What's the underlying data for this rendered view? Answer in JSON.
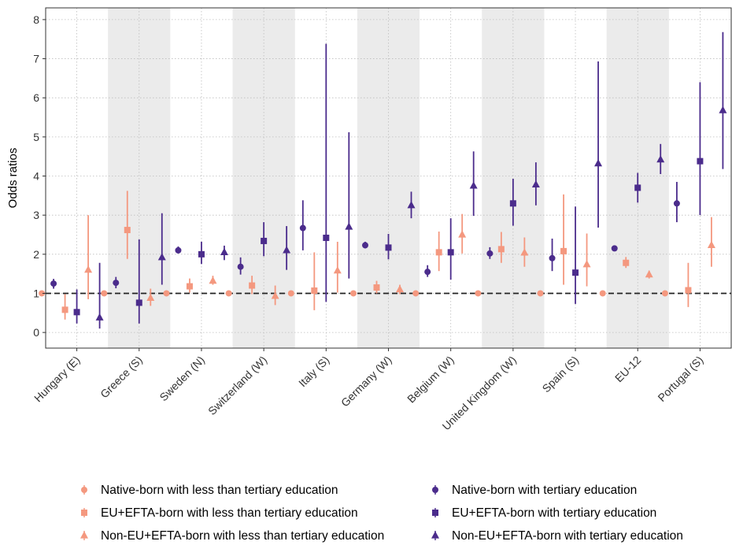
{
  "chart_data": {
    "type": "dot-errorbar",
    "title": "",
    "xlabel": "",
    "ylabel": "Odds ratios",
    "ylim": [
      -0.4,
      8.3
    ],
    "yticks": [
      0,
      1,
      2,
      3,
      4,
      5,
      6,
      7,
      8
    ],
    "reference_line": 1,
    "grid": "dotted",
    "legend_position": "bottom",
    "categories": [
      "Hungary (E)",
      "Greece (S)",
      "Sweden (N)",
      "Switzerland (W)",
      "Italy (S)",
      "Germany (W)",
      "Belgium (W)",
      "United Kingdom (W)",
      "Spain (S)",
      "EU-12",
      "Portugal (S)"
    ],
    "shaded_categories": [
      1,
      3,
      5,
      7,
      9
    ],
    "series": [
      {
        "name": "Native-born with less than tertiary education",
        "color": "#F4987F",
        "shape": "circle",
        "values": [
          1,
          1,
          1,
          1,
          1,
          1,
          1,
          1,
          1,
          1,
          1
        ],
        "lower": [
          1,
          1,
          1,
          1,
          1,
          1,
          1,
          1,
          1,
          1,
          1
        ],
        "upper": [
          1,
          1,
          1,
          1,
          1,
          1,
          1,
          1,
          1,
          1,
          1
        ]
      },
      {
        "name": "Native-born with tertiary education",
        "color": "#4B2C8C",
        "shape": "circle",
        "values": [
          1.25,
          1.27,
          2.1,
          1.68,
          2.67,
          2.23,
          1.55,
          2.02,
          1.9,
          2.15,
          3.3
        ],
        "lower": [
          1.12,
          1.13,
          2.02,
          1.48,
          2.1,
          2.15,
          1.42,
          1.88,
          1.57,
          2.08,
          2.82
        ],
        "upper": [
          1.37,
          1.42,
          2.2,
          1.92,
          3.38,
          2.32,
          1.72,
          2.18,
          2.4,
          2.22,
          3.85
        ]
      },
      {
        "name": "EU+EFTA-born with less than tertiary education",
        "color": "#F4987F",
        "shape": "square",
        "values": [
          0.58,
          2.62,
          1.18,
          1.2,
          1.07,
          1.15,
          2.05,
          2.13,
          2.08,
          1.78,
          1.08
        ],
        "lower": [
          0.33,
          1.88,
          1.02,
          0.98,
          0.57,
          1.0,
          1.57,
          1.78,
          1.22,
          1.65,
          0.65
        ],
        "upper": [
          0.98,
          3.62,
          1.38,
          1.45,
          2.05,
          1.32,
          2.58,
          2.57,
          3.53,
          1.93,
          1.78
        ]
      },
      {
        "name": "EU+EFTA-born with tertiary education",
        "color": "#4B2C8C",
        "shape": "square",
        "values": [
          0.52,
          0.76,
          2.0,
          2.34,
          2.42,
          2.17,
          2.05,
          3.3,
          1.53,
          3.7,
          4.38
        ],
        "lower": [
          0.23,
          0.23,
          1.75,
          1.95,
          0.78,
          1.87,
          1.35,
          2.73,
          0.73,
          3.32,
          3.0
        ],
        "upper": [
          1.1,
          2.38,
          2.32,
          2.82,
          7.38,
          2.52,
          2.92,
          3.93,
          3.22,
          4.08,
          6.4
        ]
      },
      {
        "name": "Non-EU+EFTA-born with less than tertiary education",
        "color": "#F4987F",
        "shape": "triangle",
        "values": [
          1.6,
          0.88,
          1.32,
          0.93,
          1.58,
          1.1,
          2.5,
          2.04,
          1.74,
          1.48,
          2.23
        ],
        "lower": [
          0.85,
          0.68,
          1.22,
          0.7,
          1.02,
          0.98,
          2.02,
          1.68,
          1.18,
          1.38,
          1.68
        ],
        "upper": [
          3.0,
          1.12,
          1.45,
          1.2,
          2.32,
          1.22,
          3.03,
          2.43,
          2.53,
          1.58,
          2.95
        ]
      },
      {
        "name": "Non-EU+EFTA-born with tertiary education",
        "color": "#4B2C8C",
        "shape": "triangle",
        "values": [
          0.38,
          1.92,
          2.05,
          2.1,
          2.7,
          3.25,
          3.75,
          3.78,
          4.32,
          4.42,
          5.68
        ],
        "lower": [
          0.1,
          1.22,
          1.85,
          1.6,
          1.38,
          2.92,
          2.98,
          3.25,
          2.68,
          4.05,
          4.18
        ],
        "upper": [
          1.78,
          3.05,
          2.22,
          2.72,
          5.12,
          3.6,
          4.63,
          4.35,
          6.93,
          4.82,
          7.68
        ]
      }
    ]
  }
}
